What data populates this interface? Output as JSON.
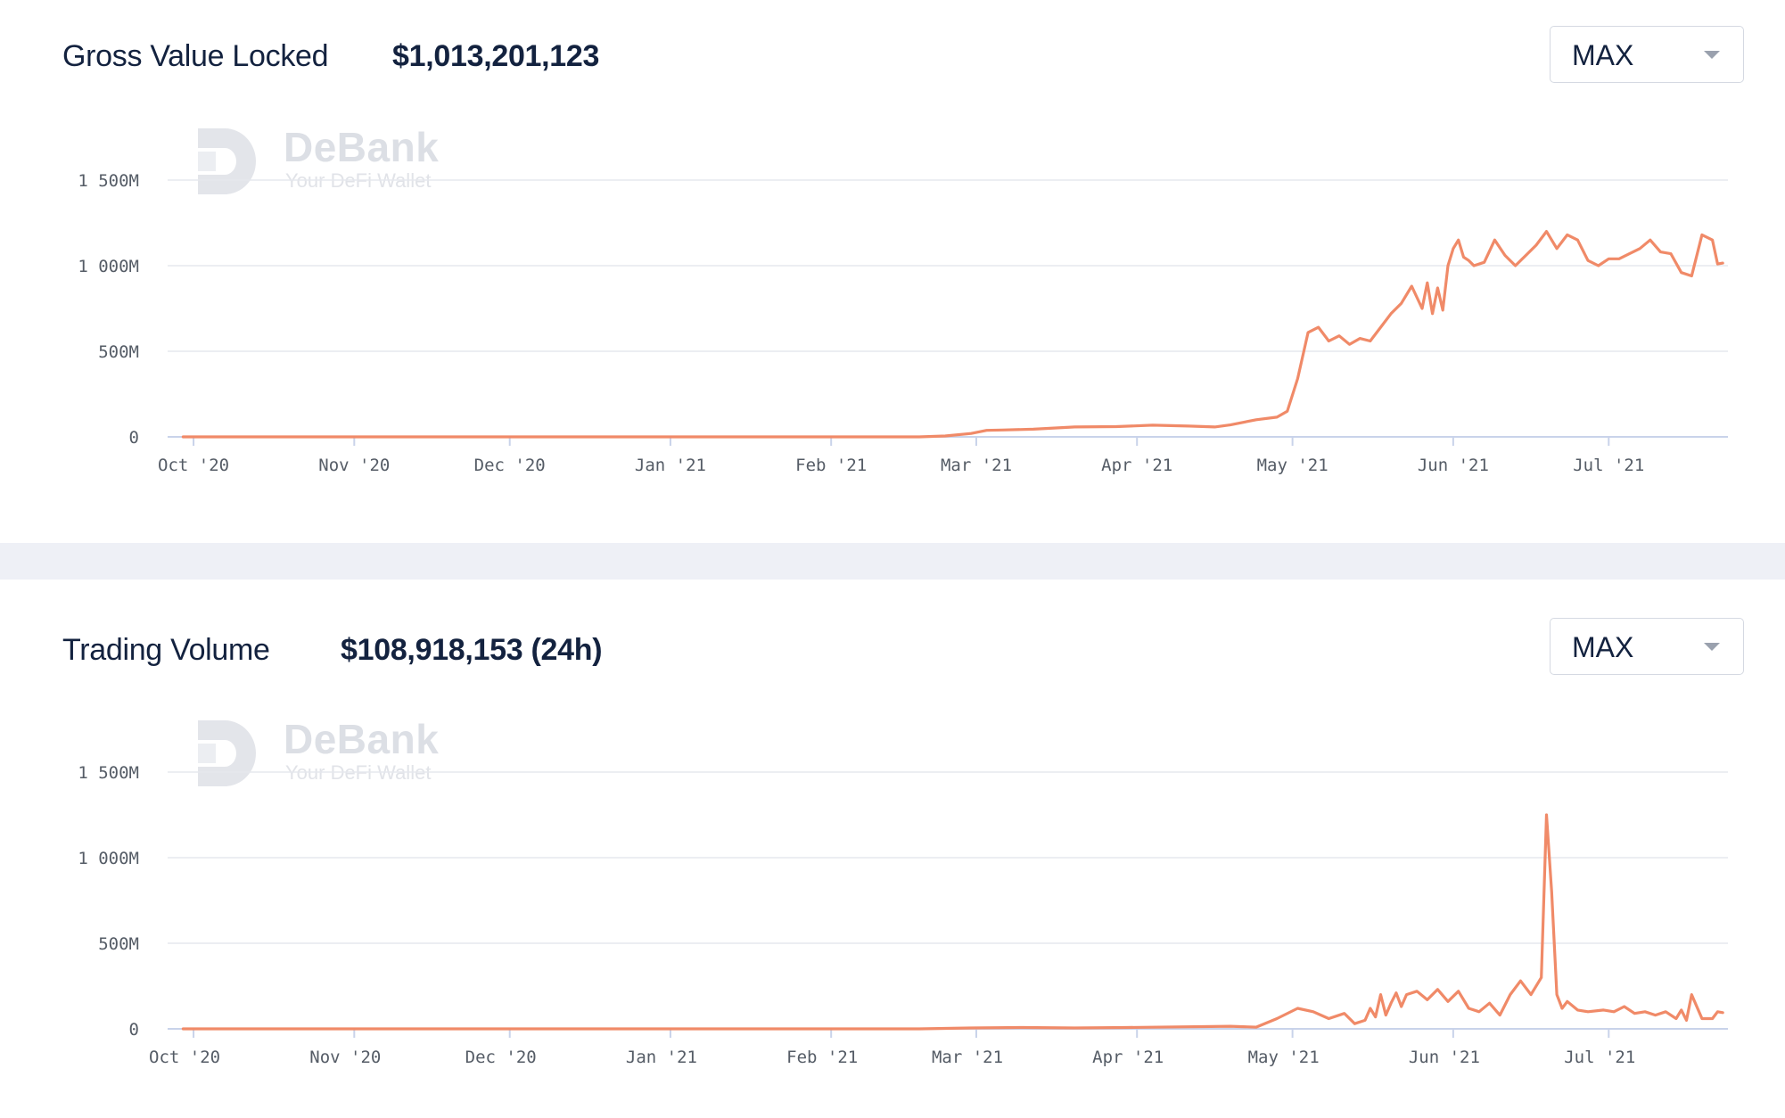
{
  "brand": {
    "name": "DeBank",
    "tagline": "Your DeFi Wallet",
    "line_color": "#f08a68",
    "grid_color": "#e6e8ed",
    "axis_color": "#c9d3ea"
  },
  "gross_value_locked": {
    "title": "Gross Value Locked",
    "value": "$1,013,201,123",
    "range_selector": {
      "selected": "MAX"
    }
  },
  "trading_volume": {
    "title": "Trading Volume",
    "value": "$108,918,153 (24h)",
    "range_selector": {
      "selected": "MAX"
    }
  },
  "chart_data": [
    {
      "type": "line",
      "title": "Gross Value Locked",
      "xlabel": "",
      "ylabel": "",
      "ylim": [
        0,
        1500
      ],
      "y_unit": "M",
      "grid": true,
      "y_ticks": [
        {
          "value": 0,
          "label": "0"
        },
        {
          "value": 500,
          "label": "500M"
        },
        {
          "value": 1000,
          "label": "1 000M"
        },
        {
          "value": 1500,
          "label": "1 500M"
        }
      ],
      "x_domain_days": [
        -5,
        296
      ],
      "x_ticks": [
        {
          "day": 0,
          "label": "Oct '20"
        },
        {
          "day": 31,
          "label": "Nov '20"
        },
        {
          "day": 61,
          "label": "Dec '20"
        },
        {
          "day": 92,
          "label": "Jan '21"
        },
        {
          "day": 123,
          "label": "Feb '21"
        },
        {
          "day": 151,
          "label": "Mar '21"
        },
        {
          "day": 182,
          "label": "Apr '21"
        },
        {
          "day": 212,
          "label": "May '21"
        },
        {
          "day": 243,
          "label": "Jun '21"
        },
        {
          "day": 273,
          "label": "Jul '21"
        }
      ],
      "series": [
        {
          "name": "Gross Value Locked",
          "x": [
            -2,
            140,
            145,
            150,
            153,
            156,
            162,
            170,
            178,
            185,
            192,
            197,
            200,
            205,
            209,
            211,
            213,
            215,
            217,
            219,
            221,
            223,
            225,
            227,
            229,
            231,
            233,
            235,
            237,
            238,
            239,
            240,
            241,
            242,
            243,
            244,
            245,
            246,
            247,
            249,
            251,
            253,
            255,
            257,
            259,
            261,
            263,
            265,
            267,
            269,
            271,
            273,
            275,
            277,
            279,
            281,
            283,
            285,
            287,
            289,
            291,
            293,
            294,
            295
          ],
          "y": [
            0,
            0,
            5,
            20,
            38,
            40,
            45,
            58,
            60,
            68,
            63,
            58,
            70,
            100,
            115,
            150,
            340,
            610,
            640,
            560,
            590,
            540,
            575,
            560,
            640,
            720,
            780,
            880,
            750,
            900,
            720,
            870,
            740,
            1000,
            1100,
            1150,
            1050,
            1030,
            1000,
            1020,
            1150,
            1060,
            1000,
            1060,
            1120,
            1200,
            1100,
            1180,
            1150,
            1030,
            1000,
            1040,
            1040,
            1070,
            1100,
            1150,
            1080,
            1070,
            960,
            940,
            1180,
            1150,
            1010,
            1015
          ]
        }
      ]
    },
    {
      "type": "line",
      "title": "Trading Volume",
      "xlabel": "",
      "ylabel": "",
      "ylim": [
        0,
        1500
      ],
      "y_unit": "M",
      "grid": true,
      "y_ticks": [
        {
          "value": 0,
          "label": "0"
        },
        {
          "value": 500,
          "label": "500M"
        },
        {
          "value": 1000,
          "label": "1 000M"
        },
        {
          "value": 1500,
          "label": "1 500M"
        }
      ],
      "x_domain_days": [
        -5,
        296
      ],
      "x_ticks": [
        {
          "day": 0,
          "label": "Oct '20"
        },
        {
          "day": 31,
          "label": "Nov '20"
        },
        {
          "day": 61,
          "label": "Dec '20"
        },
        {
          "day": 92,
          "label": "Jan '21"
        },
        {
          "day": 123,
          "label": "Feb '21"
        },
        {
          "day": 151,
          "label": "Mar '21"
        },
        {
          "day": 182,
          "label": "Apr '21"
        },
        {
          "day": 212,
          "label": "May '21"
        },
        {
          "day": 243,
          "label": "Jun '21"
        },
        {
          "day": 273,
          "label": "Jul '21"
        }
      ],
      "series": [
        {
          "name": "Trading Volume",
          "x": [
            -2,
            140,
            150,
            160,
            170,
            180,
            200,
            205,
            209,
            213,
            216,
            219,
            222,
            224,
            226,
            227,
            228,
            229,
            230,
            231,
            232,
            233,
            234,
            236,
            238,
            240,
            242,
            244,
            246,
            248,
            250,
            252,
            254,
            256,
            258,
            260,
            261,
            262,
            263,
            264,
            265,
            267,
            269,
            272,
            274,
            276,
            278,
            280,
            282,
            284,
            286,
            287,
            288,
            289,
            291,
            293,
            294,
            295
          ],
          "y": [
            0,
            0,
            5,
            8,
            5,
            8,
            15,
            10,
            60,
            120,
            100,
            60,
            90,
            30,
            50,
            120,
            70,
            200,
            80,
            150,
            210,
            130,
            200,
            220,
            170,
            230,
            160,
            220,
            120,
            100,
            150,
            80,
            200,
            280,
            200,
            300,
            1250,
            800,
            200,
            120,
            160,
            110,
            100,
            110,
            100,
            130,
            90,
            100,
            80,
            100,
            60,
            110,
            50,
            200,
            60,
            60,
            100,
            95
          ]
        }
      ]
    }
  ]
}
